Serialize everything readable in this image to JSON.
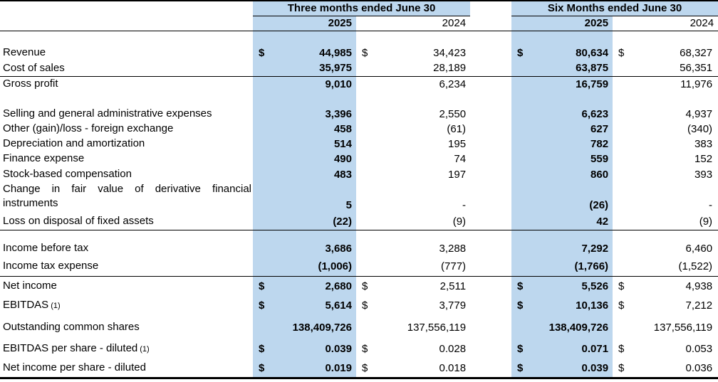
{
  "colors": {
    "highlight": "#BDD7EE"
  },
  "header": {
    "group_three_months": "Three months ended June 30",
    "group_six_months": "Six Months ended June 30",
    "year_2025": "2025",
    "year_2024": "2024"
  },
  "rows": [
    {
      "label": "Revenue",
      "d1": "$",
      "v1": "44,985",
      "d2": "$",
      "v2": "34,423",
      "d3": "$",
      "v3": "80,634",
      "d4": "$",
      "v4": "68,327"
    },
    {
      "label": "Cost of sales",
      "v1": "35,975",
      "v2": "28,189",
      "v3": "63,875",
      "v4": "56,351"
    },
    {
      "label": "Gross profit",
      "v1": "9,010",
      "v2": "6,234",
      "v3": "16,759",
      "v4": "11,976"
    },
    {
      "label": "Selling and general administrative expenses",
      "v1": "3,396",
      "v2": "2,550",
      "v3": "6,623",
      "v4": "4,937"
    },
    {
      "label": "Other (gain)/loss - foreign exchange",
      "v1": "458",
      "v2": "(61)",
      "v3": "627",
      "v4": "(340)"
    },
    {
      "label": "Depreciation and amortization",
      "v1": "514",
      "v2": "195",
      "v3": "782",
      "v4": "383"
    },
    {
      "label": "Finance expense",
      "v1": "490",
      "v2": "74",
      "v3": "559",
      "v4": "152"
    },
    {
      "label": "Stock-based compensation",
      "v1": "483",
      "v2": "197",
      "v3": "860",
      "v4": "393"
    },
    {
      "label": "Change in fair value of derivative financial instruments",
      "v1": "5",
      "v2": "-",
      "v3": "(26)",
      "v4": "-"
    },
    {
      "label": "Loss on disposal of fixed assets",
      "v1": "(22)",
      "v2": "(9)",
      "v3": "42",
      "v4": "(9)"
    },
    {
      "label": "Income before tax",
      "v1": "3,686",
      "v2": "3,288",
      "v3": "7,292",
      "v4": "6,460"
    },
    {
      "label": "Income tax expense",
      "v1": "(1,006)",
      "v2": "(777)",
      "v3": "(1,766)",
      "v4": "(1,522)"
    },
    {
      "label": "Net income",
      "d1": "$",
      "v1": "2,680",
      "d2": "$",
      "v2": "2,511",
      "d3": "$",
      "v3": "5,526",
      "d4": "$",
      "v4": "4,938"
    },
    {
      "label": "EBITDAS",
      "note": "(1)",
      "d1": "$",
      "v1": "5,614",
      "d2": "$",
      "v2": "3,779",
      "d3": "$",
      "v3": "10,136",
      "d4": "$",
      "v4": "7,212"
    },
    {
      "label": "Outstanding common shares",
      "v1": "138,409,726",
      "v2": "137,556,119",
      "v3": "138,409,726",
      "v4": "137,556,119"
    },
    {
      "label": "EBITDAS per share - diluted",
      "note": "(1)",
      "d1": "$",
      "v1": "0.039",
      "d2": "$",
      "v2": "0.028",
      "d3": "$",
      "v3": "0.071",
      "d4": "$",
      "v4": "0.053"
    },
    {
      "label": "Net income per share - diluted",
      "d1": "$",
      "v1": "0.019",
      "d2": "$",
      "v2": "0.018",
      "d3": "$",
      "v3": "0.039",
      "d4": "$",
      "v4": "0.036"
    }
  ]
}
